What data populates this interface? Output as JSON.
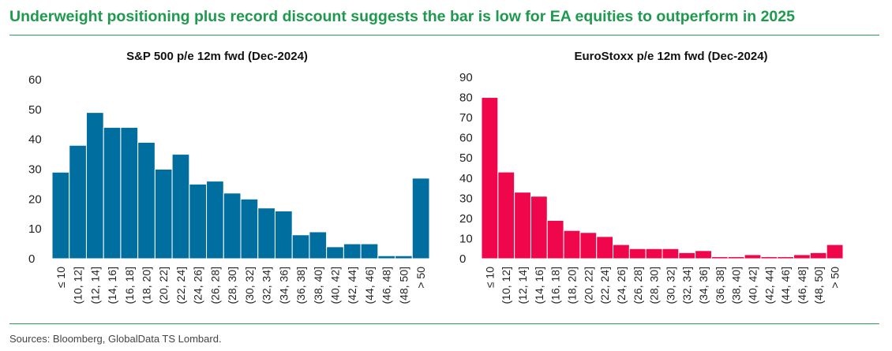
{
  "page": {
    "title": "Underweight positioning plus record discount suggests the bar is low for EA equities to outperform in 2025",
    "source": "Sources: Bloomberg, GlobalData TS Lombard."
  },
  "colors": {
    "title": "#1e9a4e",
    "sp500": "#006fa0",
    "eurostoxx": "#f0064a"
  },
  "chart_data": [
    {
      "type": "bar",
      "title": "S&P 500 p/e 12m fwd (Dec-2024)",
      "categories": [
        "≤ 10",
        "(10, 12]",
        "(12, 14]",
        "(14, 16]",
        "(16, 18]",
        "(18, 20]",
        "(20, 22]",
        "(22, 24]",
        "(24, 26]",
        "(26, 28]",
        "(28, 30]",
        "(30, 32]",
        "(32, 34]",
        "(34, 36]",
        "(36, 38]",
        "(38, 40]",
        "(40, 42]",
        "(42, 44]",
        "(44, 46]",
        "(46, 48]",
        "(48, 50]",
        "> 50"
      ],
      "values": [
        29,
        38,
        49,
        44,
        44,
        39,
        30,
        35,
        25,
        26,
        22,
        20,
        17,
        16,
        8,
        9,
        4,
        5,
        5,
        1,
        1,
        27
      ],
      "ylim": [
        0,
        60
      ],
      "yticks": [
        0,
        10,
        20,
        30,
        40,
        50,
        60
      ],
      "color": "#006fa0",
      "grid": false
    },
    {
      "type": "bar",
      "title": "EuroStoxx p/e 12m fwd (Dec-2024)",
      "categories": [
        "≤ 10",
        "(10, 12]",
        "(12, 14]",
        "(14, 16]",
        "(16, 18]",
        "(18, 20]",
        "(20, 22]",
        "(22, 24]",
        "(24, 26]",
        "(26, 28]",
        "(28, 30]",
        "(30, 32]",
        "(32, 34]",
        "(34, 36]",
        "(36, 38]",
        "(38, 40]",
        "(40, 42]",
        "(42, 44]",
        "(44, 46]",
        "(46, 48]",
        "(48, 50]",
        "> 50"
      ],
      "values": [
        80,
        43,
        33,
        31,
        19,
        14,
        13,
        11,
        7,
        5,
        5,
        5,
        3,
        4,
        1,
        1,
        2,
        1,
        1,
        2,
        3,
        7
      ],
      "ylim": [
        0,
        90
      ],
      "yticks": [
        0,
        10,
        20,
        30,
        40,
        50,
        60,
        70,
        80,
        90
      ],
      "color": "#f0064a",
      "grid": false
    }
  ]
}
